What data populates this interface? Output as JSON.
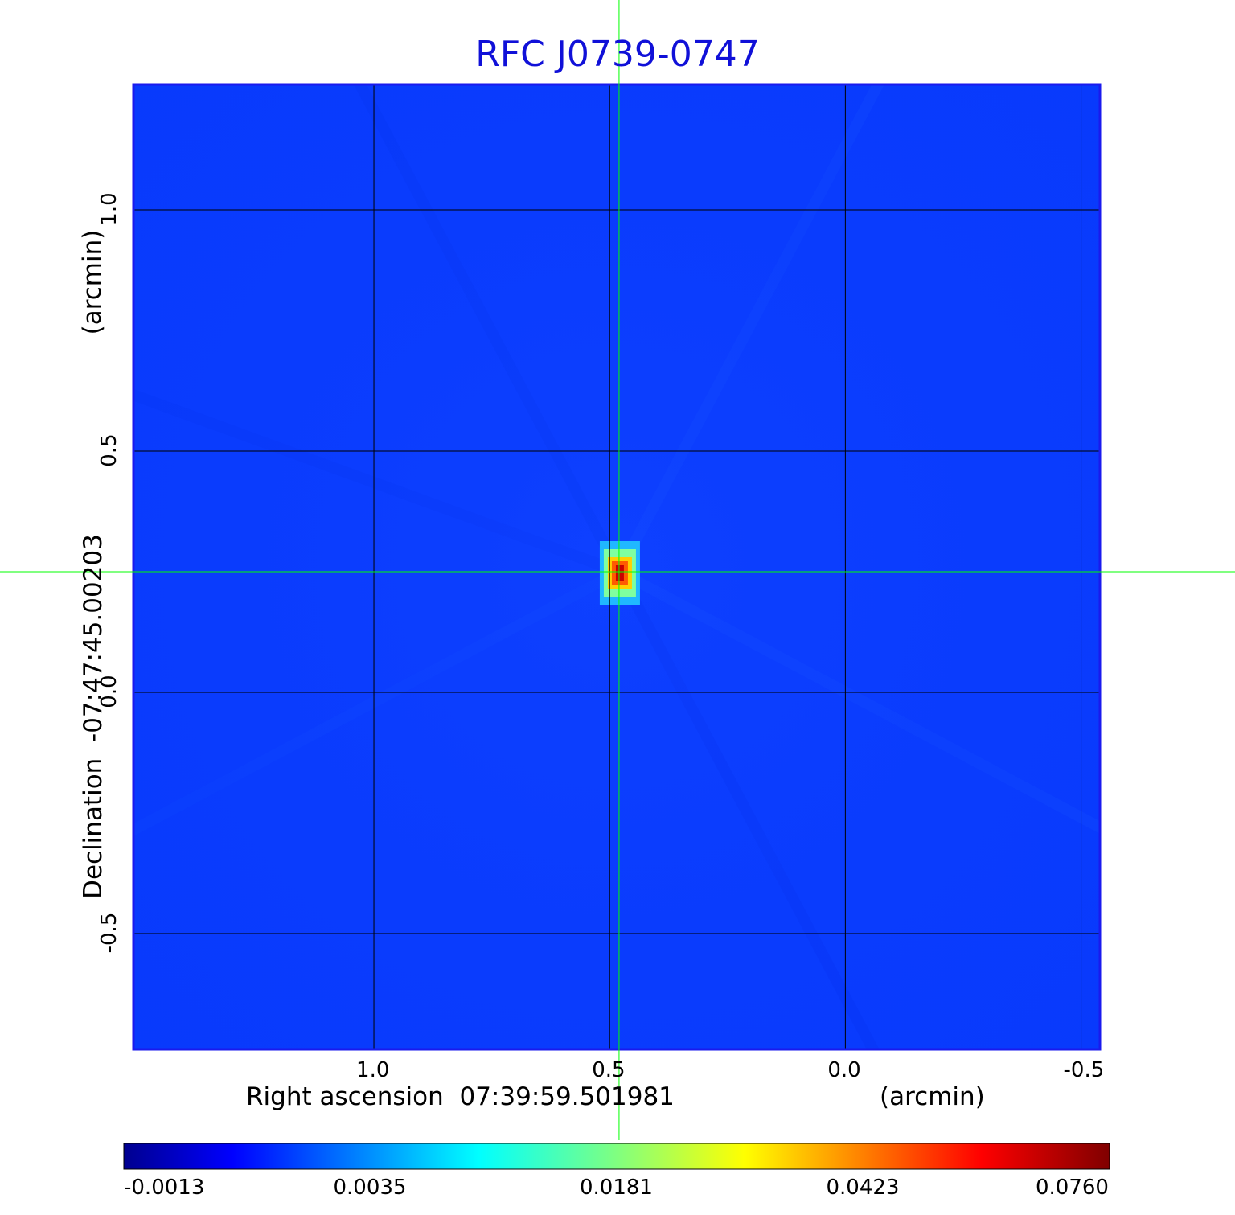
{
  "chart_data": {
    "type": "heatmap",
    "title": "RFC J0739-0747",
    "xlabel": "Right ascension  07:39:59.501981",
    "xunit": "(arcmin)",
    "ylabel": "Declination  -07:47:45.00203",
    "yunit": "(arcmin)",
    "x_ticks": [
      "1.0",
      "0.5",
      "0.0",
      "-0.5"
    ],
    "y_ticks": [
      "1.0",
      "0.5",
      "0.0",
      "-0.5"
    ],
    "xlim": [
      1.51,
      -0.54
    ],
    "ylim": [
      -0.74,
      1.26
    ],
    "grid": true,
    "colormap": "jet",
    "colorbar": {
      "ticks": [
        "-0.0013",
        "0.0035",
        "0.0181",
        "0.0423",
        "0.0760"
      ],
      "range": [
        -0.0013,
        0.076
      ]
    },
    "peak": {
      "x": 0.48,
      "y": 0.25,
      "value": 0.076
    },
    "crosshair": {
      "x": 0.48,
      "y": 0.25,
      "color": "#00ff00"
    },
    "colors": {
      "title": "#1010d8",
      "frame": "#1a1aee",
      "background_field": "#0a3cff"
    }
  }
}
